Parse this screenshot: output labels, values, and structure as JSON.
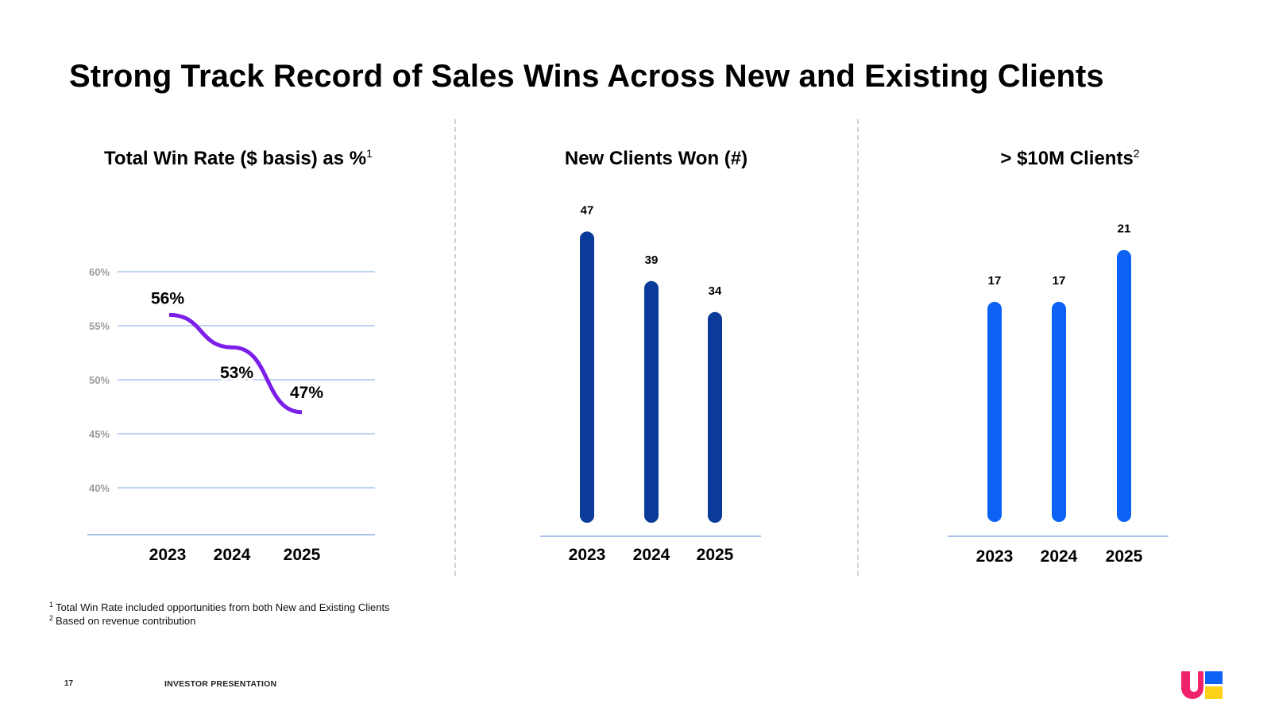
{
  "slide": {
    "title": "Strong Track Record of Sales Wins Across New and Existing Clients",
    "page_number": "17",
    "footer_label": "INVESTOR PRESENTATION"
  },
  "footnotes": [
    {
      "marker": "1",
      "text": "Total Win Rate included opportunities from both New and Existing Clients"
    },
    {
      "marker": "2",
      "text": "Based on revenue contribution"
    }
  ],
  "colors": {
    "line": "#7b1fe8",
    "bar_dark": "#0a3a9a",
    "bar_bright": "#0b62f5",
    "gridline": "#a9c4ee",
    "tick_text": "#9a9a9a",
    "logo_pink": "#f0226e",
    "logo_blue": "#0b62f5",
    "logo_yellow": "#ffd21a"
  },
  "chart_data": [
    {
      "type": "line",
      "title": "Total Win Rate ($ basis) as %",
      "title_sup": "1",
      "categories": [
        "2023",
        "2024",
        "2025"
      ],
      "values": [
        56,
        53,
        47
      ],
      "data_labels": [
        "56%",
        "53%",
        "47%"
      ],
      "yticks": [
        "60%",
        "55%",
        "50%",
        "45%",
        "40%"
      ],
      "ytick_values": [
        60,
        55,
        50,
        45,
        40
      ],
      "ylim": [
        40,
        60
      ],
      "grid": true
    },
    {
      "type": "bar",
      "title": "New Clients Won (#)",
      "categories": [
        "2023",
        "2024",
        "2025"
      ],
      "values": [
        47,
        39,
        34
      ],
      "data_labels": [
        "47",
        "39",
        "34"
      ]
    },
    {
      "type": "bar",
      "title": "> $10M Clients",
      "title_sup": "2",
      "categories": [
        "2023",
        "2024",
        "2025"
      ],
      "values": [
        17,
        17,
        21
      ],
      "data_labels": [
        "17",
        "17",
        "21"
      ]
    }
  ]
}
